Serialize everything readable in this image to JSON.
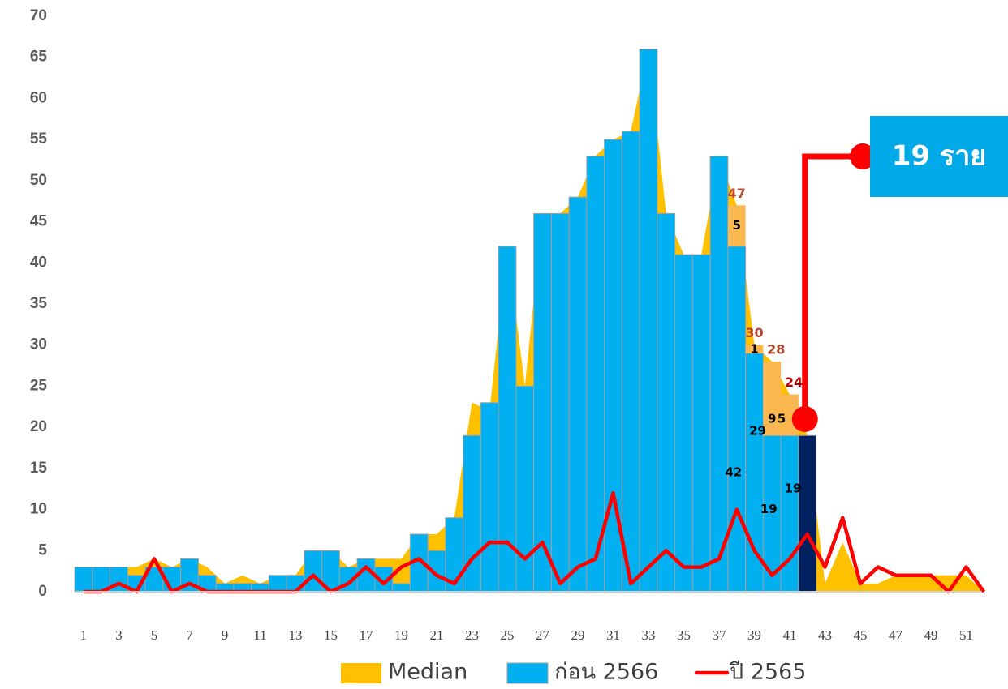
{
  "chart_data": {
    "type": "combo",
    "categories": [
      1,
      null,
      3,
      null,
      5,
      null,
      7,
      null,
      9,
      null,
      11,
      null,
      13,
      null,
      15,
      null,
      17,
      null,
      19,
      null,
      21,
      null,
      23,
      null,
      25,
      null,
      27,
      null,
      29,
      null,
      31,
      null,
      33,
      null,
      35,
      null,
      37,
      null,
      39,
      null,
      41,
      null,
      43,
      null,
      45,
      null,
      47,
      null,
      49,
      null,
      51,
      null
    ],
    "ylim": [
      0,
      70
    ],
    "yticks": [
      0,
      5,
      10,
      15,
      20,
      25,
      30,
      35,
      40,
      45,
      50,
      55,
      60,
      65,
      70
    ],
    "series": [
      {
        "name": "Median",
        "type": "area",
        "color": "#ffc000",
        "values": [
          3,
          3,
          3,
          3,
          4,
          3,
          4,
          3,
          1,
          2,
          1,
          2,
          2,
          5,
          5,
          3,
          4,
          4,
          4,
          7,
          7,
          9,
          23,
          22,
          42,
          25,
          46,
          46,
          48,
          53,
          55,
          56,
          66,
          46,
          41,
          41,
          53,
          47,
          30,
          28,
          24,
          19,
          1,
          6,
          1,
          1,
          2,
          2,
          2,
          2,
          2,
          0
        ]
      },
      {
        "name": "ก่อน 2566",
        "type": "bar",
        "color": "#00b0f0",
        "values": [
          3,
          3,
          3,
          2,
          3,
          3,
          4,
          2,
          1,
          1,
          1,
          2,
          2,
          5,
          5,
          3,
          4,
          3,
          1,
          7,
          5,
          9,
          19,
          23,
          42,
          25,
          46,
          46,
          48,
          53,
          55,
          56,
          66,
          46,
          41,
          41,
          53,
          42,
          29,
          19,
          19,
          null,
          null,
          null,
          null,
          null,
          null,
          null,
          null,
          null,
          null,
          null
        ],
        "value_labels_at": [
          37,
          38,
          39,
          40
        ]
      },
      {
        "type": "bar",
        "stack": true,
        "color": "#fbb850",
        "values": [
          null,
          null,
          null,
          null,
          null,
          null,
          null,
          null,
          null,
          null,
          null,
          null,
          null,
          null,
          null,
          null,
          null,
          null,
          null,
          null,
          null,
          null,
          null,
          null,
          null,
          null,
          null,
          null,
          null,
          null,
          null,
          null,
          null,
          null,
          null,
          null,
          null,
          5,
          1,
          9,
          5,
          null,
          null,
          null,
          null,
          null,
          null,
          null,
          null,
          null,
          null,
          null
        ],
        "totals": [
          47,
          30,
          28,
          24
        ]
      },
      {
        "type": "bar",
        "color": "#002060",
        "values": [
          null,
          null,
          null,
          null,
          null,
          null,
          null,
          null,
          null,
          null,
          null,
          null,
          null,
          null,
          null,
          null,
          null,
          null,
          null,
          null,
          null,
          null,
          null,
          null,
          null,
          null,
          null,
          null,
          null,
          null,
          null,
          null,
          null,
          null,
          null,
          null,
          null,
          null,
          null,
          null,
          null,
          19,
          null,
          null,
          null,
          null,
          null,
          null,
          null,
          null,
          null,
          null
        ]
      },
      {
        "name": "ปี 2565",
        "type": "line",
        "color": "#ff0000",
        "values": [
          0,
          0,
          1,
          0,
          4,
          0,
          1,
          0,
          0,
          0,
          0,
          0,
          0,
          2,
          0,
          1,
          3,
          1,
          3,
          4,
          2,
          1,
          4,
          6,
          6,
          4,
          6,
          1,
          3,
          4,
          12,
          1,
          3,
          5,
          3,
          3,
          4,
          10,
          5,
          2,
          4,
          7,
          3,
          9,
          1,
          3,
          2,
          2,
          2,
          0,
          3,
          0
        ]
      }
    ],
    "callout": "19 ราย"
  }
}
